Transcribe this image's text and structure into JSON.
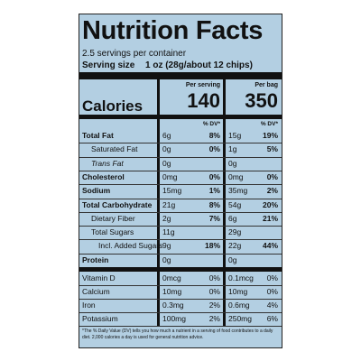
{
  "header": {
    "title": "Nutrition Facts",
    "servings": "2.5 servings per container",
    "serving_size_label": "Serving size",
    "serving_size": "1 oz (28g/about 12 chips)"
  },
  "columns": {
    "serving": "Per serving",
    "bag": "Per bag",
    "dv": "% DV*"
  },
  "calories": {
    "label": "Calories",
    "serving": "140",
    "bag": "350"
  },
  "rows": [
    {
      "nutrient": "Total Fat",
      "serving_amount": "6g",
      "serving_dv": "8%",
      "bag_amount": "15g",
      "bag_dv": "19%"
    },
    {
      "nutrient": "Saturated Fat",
      "serving_amount": "0g",
      "serving_dv": "0%",
      "bag_amount": "1g",
      "bag_dv": "5%"
    },
    {
      "nutrient": "Trans Fat",
      "serving_amount": "0g",
      "bag_amount": "0g"
    },
    {
      "nutrient": "Cholesterol",
      "serving_amount": "0mg",
      "serving_dv": "0%",
      "bag_amount": "0mg",
      "bag_dv": "0%"
    },
    {
      "nutrient": "Sodium",
      "serving_amount": "15mg",
      "serving_dv": "1%",
      "bag_amount": "35mg",
      "bag_dv": "2%"
    },
    {
      "nutrient": "Total Carbohydrate",
      "serving_amount": "21g",
      "serving_dv": "8%",
      "bag_amount": "54g",
      "bag_dv": "20%"
    },
    {
      "nutrient": "Dietary Fiber",
      "serving_amount": "2g",
      "serving_dv": "7%",
      "bag_amount": "6g",
      "bag_dv": "21%"
    },
    {
      "nutrient": "Total Sugars",
      "serving_amount": "11g",
      "bag_amount": "29g"
    },
    {
      "nutrient": "Incl. Added Sugars",
      "serving_amount": "9g",
      "serving_dv": "18%",
      "bag_amount": "22g",
      "bag_dv": "44%"
    },
    {
      "nutrient": "Protein",
      "serving_amount": "0g",
      "bag_amount": "0g"
    }
  ],
  "vitamins": [
    {
      "nutrient": "Vitamin D",
      "serving_amount": "0mcg",
      "serving_dv": "0%",
      "bag_amount": "0.1mcg",
      "bag_dv": "0%"
    },
    {
      "nutrient": "Calcium",
      "serving_amount": "10mg",
      "serving_dv": "0%",
      "bag_amount": "10mg",
      "bag_dv": "0%"
    },
    {
      "nutrient": "Iron",
      "serving_amount": "0.3mg",
      "serving_dv": "2%",
      "bag_amount": "0.6mg",
      "bag_dv": "4%"
    },
    {
      "nutrient": "Potassium",
      "serving_amount": "100mg",
      "serving_dv": "2%",
      "bag_amount": "250mg",
      "bag_dv": "6%"
    }
  ],
  "footnote": "*The % Daily Value (DV) tells you how much a nutrient in a serving of food contributes to a daily diet. 2,000 calories a day is used for general nutrition advice."
}
